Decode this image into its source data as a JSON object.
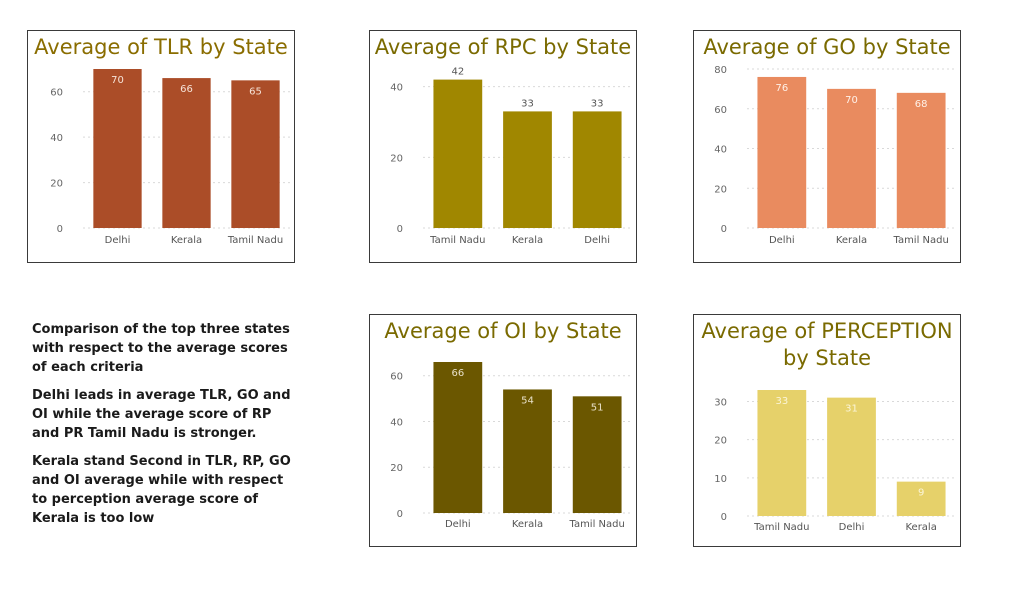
{
  "chart_data": [
    {
      "id": "tlr",
      "type": "bar",
      "title": "Average of TLR by State",
      "categories": [
        "Delhi",
        "Kerala",
        "Tamil Nadu"
      ],
      "values": [
        70,
        66,
        65
      ],
      "yticks": [
        0,
        20,
        40,
        60
      ],
      "ylim": [
        0,
        70
      ],
      "color": "#ab4d28",
      "title_color": "#8a6d00",
      "label_inside": true,
      "label_color": "#f6e3d8"
    },
    {
      "id": "rpc",
      "type": "bar",
      "title": "Average of RPC by State",
      "categories": [
        "Tamil Nadu",
        "Kerala",
        "Delhi"
      ],
      "values": [
        42,
        33,
        33
      ],
      "yticks": [
        0,
        20,
        40
      ],
      "ylim": [
        0,
        45
      ],
      "color": "#a08700",
      "title_color": "#7a6a00",
      "label_inside": false,
      "label_color": "#555555"
    },
    {
      "id": "go",
      "type": "bar",
      "title": "Average of GO by State",
      "categories": [
        "Delhi",
        "Kerala",
        "Tamil Nadu"
      ],
      "values": [
        76,
        70,
        68
      ],
      "yticks": [
        0,
        20,
        40,
        60,
        80
      ],
      "ylim": [
        0,
        80
      ],
      "color": "#e98b5f",
      "title_color": "#7a6a00",
      "label_inside": true,
      "label_color": "#fff1e8"
    },
    {
      "id": "oi",
      "type": "bar",
      "title": "Average of OI by State",
      "categories": [
        "Delhi",
        "Kerala",
        "Tamil Nadu"
      ],
      "values": [
        66,
        54,
        51
      ],
      "yticks": [
        0,
        20,
        40,
        60
      ],
      "ylim": [
        0,
        66
      ],
      "color": "#6b5700",
      "title_color": "#7a6a00",
      "label_inside": true,
      "label_color": "#e8e0c8"
    },
    {
      "id": "perception",
      "type": "bar",
      "title": "Average of PERCEPTION\nby State",
      "categories": [
        "Tamil Nadu",
        "Delhi",
        "Kerala"
      ],
      "values": [
        33,
        31,
        9
      ],
      "yticks": [
        0,
        10,
        20,
        30
      ],
      "ylim": [
        0,
        33
      ],
      "color": "#e6d16a",
      "title_color": "#7a6a00",
      "label_inside": true,
      "label_color": "#fbf5d8"
    }
  ],
  "notes": {
    "p1": "Comparison of the top three states with respect to the average scores of each criteria",
    "p2": "Delhi leads in average TLR, GO and OI while the average score of RP and PR Tamil Nadu is stronger.",
    "p3": "Kerala stand Second in TLR, RP, GO and OI average while with respect to perception average score of Kerala is too low"
  }
}
